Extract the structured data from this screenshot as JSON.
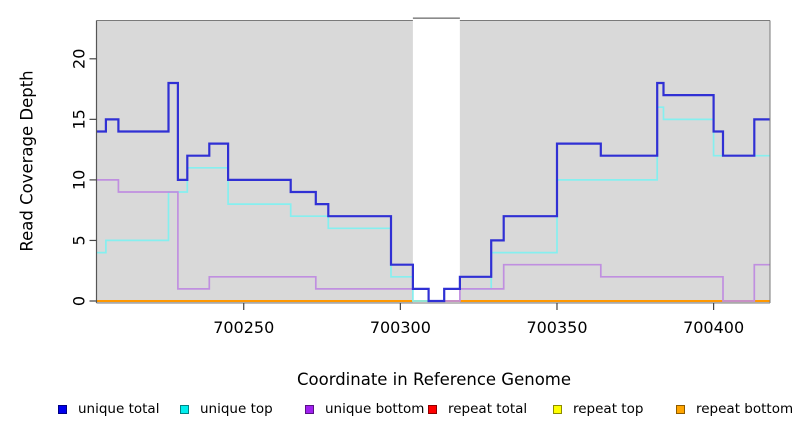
{
  "axes": {
    "xlabel": "Coordinate in Reference Genome",
    "ylabel": "Read Coverage Depth"
  },
  "legend": {
    "items": [
      {
        "label": "unique total",
        "color": "#0000ee"
      },
      {
        "label": "unique top",
        "color": "#00eeee"
      },
      {
        "label": "unique bottom",
        "color": "#a020f0"
      },
      {
        "label": "repeat total",
        "color": "#ff0000"
      },
      {
        "label": "repeat top",
        "color": "#ffff00"
      },
      {
        "label": "repeat bottom",
        "color": "#ffa500"
      }
    ]
  },
  "chart_data": {
    "type": "line",
    "subtype": "step-coverage",
    "title": "",
    "xlabel": "Coordinate in Reference Genome",
    "ylabel": "Read Coverage Depth",
    "xlim": [
      700203,
      700418
    ],
    "ylim": [
      0,
      23.2
    ],
    "grid": false,
    "panel_bg": "#d9d9d9",
    "border_color": "#7a7a7a",
    "gap_region": [
      700304,
      700319
    ],
    "x_ticks": [
      700250,
      700300,
      700350,
      700400
    ],
    "x_tick_labels": [
      "700250",
      "700300",
      "700350",
      "700400"
    ],
    "y_ticks": [
      0,
      5,
      10,
      15,
      20
    ],
    "y_tick_labels": [
      "0",
      "5",
      "10",
      "15",
      "20"
    ],
    "legend_position": "bottom",
    "series": [
      {
        "name": "repeat total",
        "color": "#ff0000",
        "width": 1.4,
        "points": [
          [
            700203,
            0
          ]
        ]
      },
      {
        "name": "repeat top",
        "color": "#ffff00",
        "width": 1.4,
        "points": [
          [
            700203,
            0
          ]
        ]
      },
      {
        "name": "repeat bottom",
        "color": "#ff9800",
        "width": 2,
        "points": [
          [
            700203,
            0
          ]
        ]
      },
      {
        "name": "unique top",
        "color": "#85efef",
        "width": 1.7,
        "points": [
          [
            700203,
            4
          ],
          [
            700206,
            5
          ],
          [
            700226,
            9
          ],
          [
            700232,
            11
          ],
          [
            700245,
            8
          ],
          [
            700265,
            7
          ],
          [
            700277,
            6
          ],
          [
            700297,
            2
          ],
          [
            700304,
            0
          ],
          [
            700314,
            1
          ],
          [
            700329,
            4
          ],
          [
            700350,
            10
          ],
          [
            700382,
            16
          ],
          [
            700384,
            15
          ],
          [
            700400,
            12
          ]
        ]
      },
      {
        "name": "unique bottom",
        "color": "#c08fe0",
        "width": 1.7,
        "points": [
          [
            700203,
            10
          ],
          [
            700210,
            9
          ],
          [
            700229,
            1
          ],
          [
            700239,
            2
          ],
          [
            700273,
            1
          ],
          [
            700309,
            0
          ],
          [
            700319,
            1
          ],
          [
            700333,
            3
          ],
          [
            700364,
            2
          ],
          [
            700403,
            0
          ],
          [
            700413,
            3
          ]
        ]
      },
      {
        "name": "unique total",
        "color": "#3030d4",
        "width": 2.2,
        "points": [
          [
            700203,
            14
          ],
          [
            700206,
            15
          ],
          [
            700210,
            14
          ],
          [
            700226,
            18
          ],
          [
            700229,
            10
          ],
          [
            700232,
            12
          ],
          [
            700239,
            13
          ],
          [
            700245,
            10
          ],
          [
            700265,
            9
          ],
          [
            700273,
            8
          ],
          [
            700277,
            7
          ],
          [
            700297,
            3
          ],
          [
            700304,
            1
          ],
          [
            700309,
            0
          ],
          [
            700314,
            1
          ],
          [
            700319,
            2
          ],
          [
            700329,
            5
          ],
          [
            700333,
            7
          ],
          [
            700350,
            13
          ],
          [
            700364,
            12
          ],
          [
            700382,
            18
          ],
          [
            700384,
            17
          ],
          [
            700400,
            14
          ],
          [
            700403,
            12
          ],
          [
            700413,
            15
          ]
        ]
      }
    ]
  }
}
